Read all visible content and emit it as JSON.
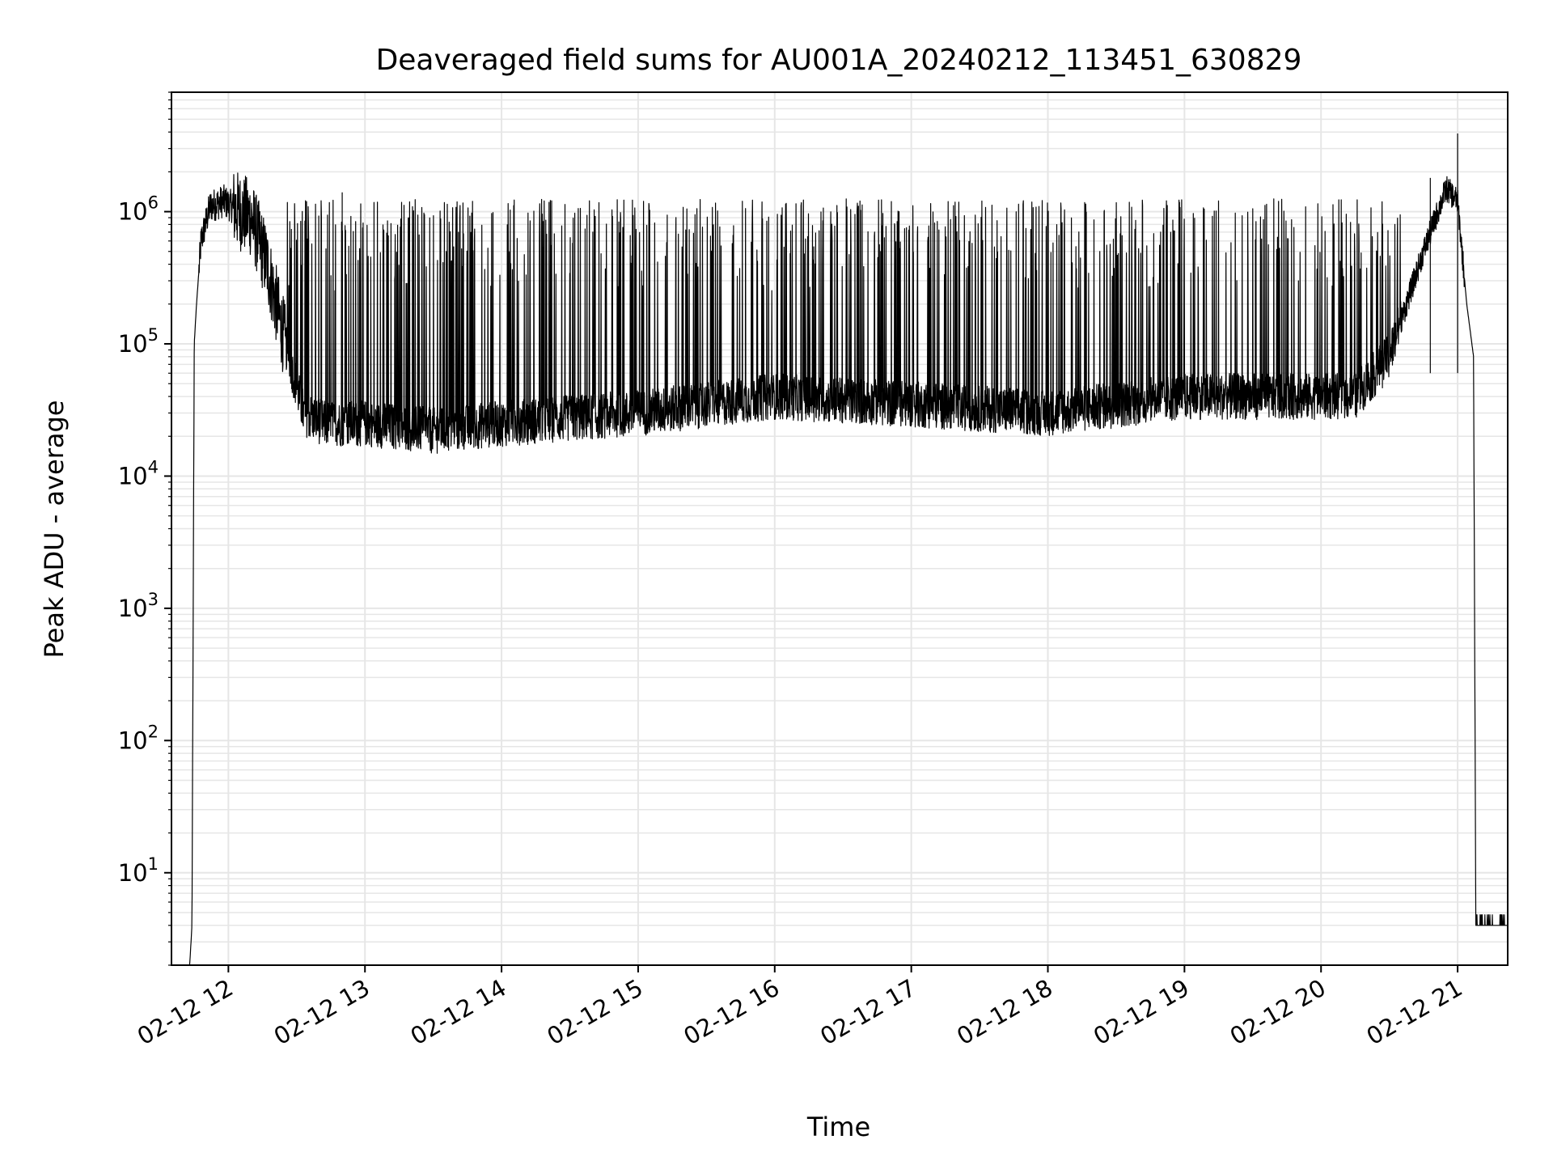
{
  "chart_data": {
    "type": "line",
    "title": "Deaveraged field sums for AU001A_20240212_113451_630829",
    "xlabel": "Time",
    "ylabel": "Peak ADU - average",
    "yscale": "log",
    "ylim": [
      2,
      8000000
    ],
    "xlim": [
      "2024-02-12 11:35",
      "2024-02-12 21:22"
    ],
    "grid": true,
    "grid_color": "#e6e6e6",
    "line_color": "#000000",
    "x_ticks": [
      {
        "value": "2024-02-12 12:00",
        "label": "02-12 12"
      },
      {
        "value": "2024-02-12 13:00",
        "label": "02-12 13"
      },
      {
        "value": "2024-02-12 14:00",
        "label": "02-12 14"
      },
      {
        "value": "2024-02-12 15:00",
        "label": "02-12 15"
      },
      {
        "value": "2024-02-12 16:00",
        "label": "02-12 16"
      },
      {
        "value": "2024-02-12 17:00",
        "label": "02-12 17"
      },
      {
        "value": "2024-02-12 18:00",
        "label": "02-12 18"
      },
      {
        "value": "2024-02-12 19:00",
        "label": "02-12 19"
      },
      {
        "value": "2024-02-12 20:00",
        "label": "02-12 20"
      },
      {
        "value": "2024-02-12 21:00",
        "label": "02-12 21"
      }
    ],
    "y_ticks": [
      {
        "value": 10,
        "base": "10",
        "exp": "1"
      },
      {
        "value": 100,
        "base": "10",
        "exp": "2"
      },
      {
        "value": 1000,
        "base": "10",
        "exp": "3"
      },
      {
        "value": 10000,
        "base": "10",
        "exp": "4"
      },
      {
        "value": 100000,
        "base": "10",
        "exp": "5"
      },
      {
        "value": 1000000,
        "base": "10",
        "exp": "6"
      }
    ],
    "series": [
      {
        "x": [
          "2024-02-12 11:43",
          "2024-02-12 11:44",
          "2024-02-12 11:45",
          "2024-02-12 11:46",
          "2024-02-12 11:48",
          "2024-02-12 11:52",
          "2024-02-12 11:58",
          "2024-02-12 12:05",
          "2024-02-12 12:10",
          "2024-02-12 12:17",
          "2024-02-12 12:25",
          "2024-02-12 12:33",
          "2024-02-12 12:42",
          "2024-02-12 13:00",
          "2024-02-12 13:30",
          "2024-02-12 14:00",
          "2024-02-12 15:00",
          "2024-02-12 16:00",
          "2024-02-12 17:00",
          "2024-02-12 18:00",
          "2024-02-12 19:00",
          "2024-02-12 20:00",
          "2024-02-12 20:15",
          "2024-02-12 20:30",
          "2024-02-12 20:45",
          "2024-02-12 20:55",
          "2024-02-12 21:00",
          "2024-02-12 21:04",
          "2024-02-12 21:07",
          "2024-02-12 21:08",
          "2024-02-12 21:22"
        ],
        "y": [
          2,
          4,
          100000,
          200000,
          600000,
          1100000,
          1200000,
          1000000,
          900000,
          400000,
          100000,
          30000,
          25000,
          25000,
          22000,
          25000,
          30000,
          40000,
          35000,
          30000,
          40000,
          40000,
          40000,
          80000,
          500000,
          1500000,
          1200000,
          200000,
          80000,
          4,
          4
        ]
      }
    ]
  }
}
